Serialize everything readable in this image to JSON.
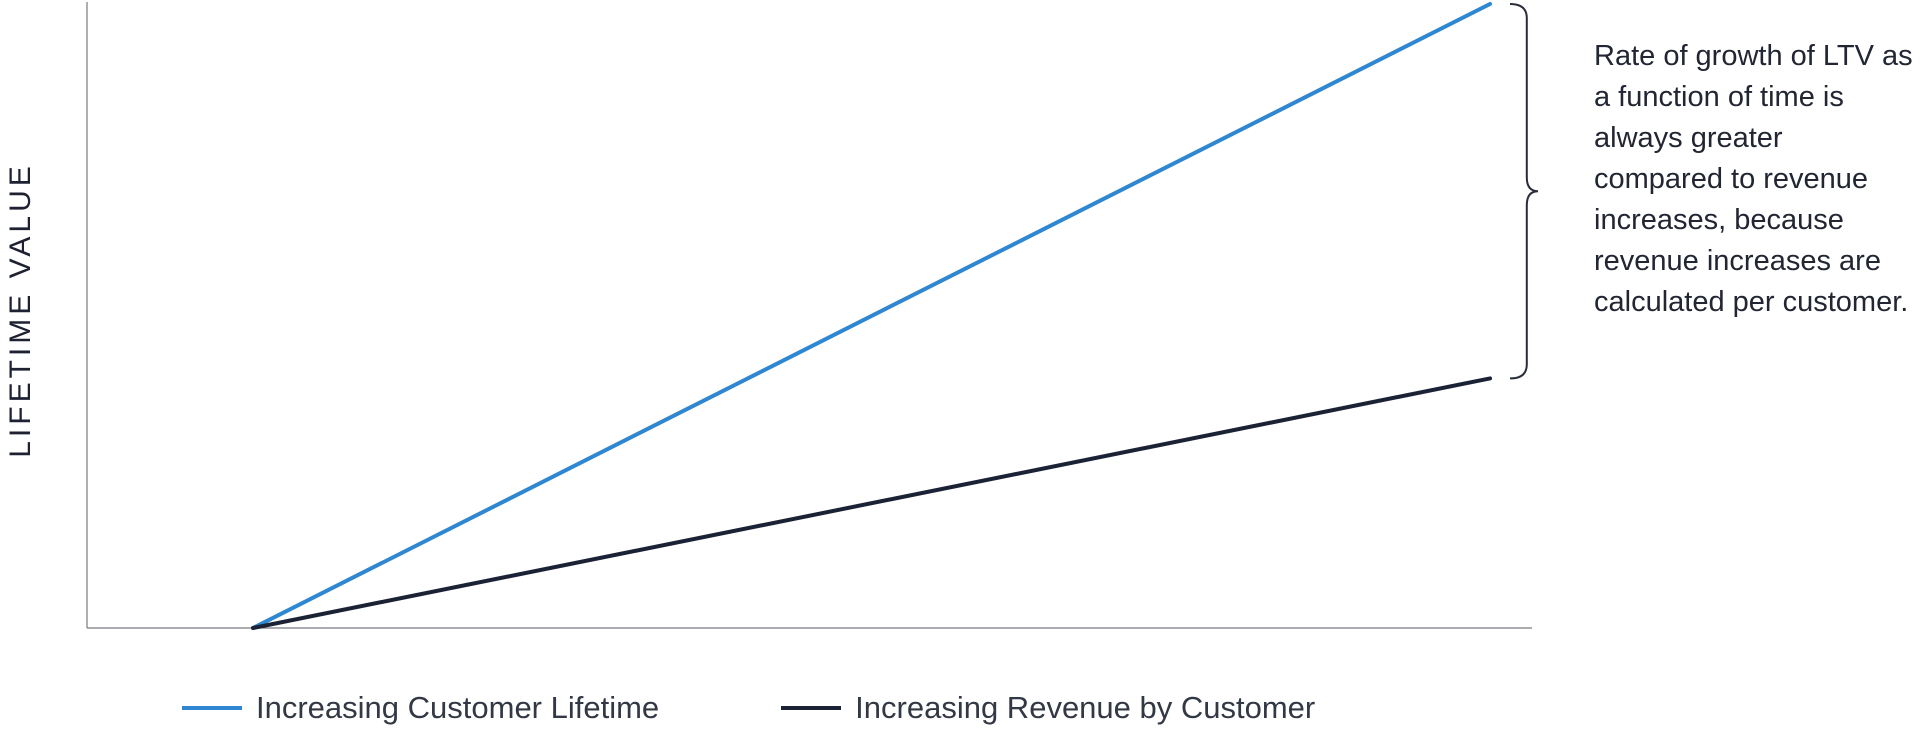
{
  "chart_data": {
    "type": "line",
    "title": "",
    "xlabel": "",
    "ylabel": "LIFETIME VALUE",
    "grid": false,
    "legend_position": "bottom",
    "x": [
      0,
      1
    ],
    "series": [
      {
        "name": "Increasing Customer Lifetime",
        "color": "#2e87d0",
        "values": [
          0,
          1
        ]
      },
      {
        "name": "Increasing Revenue by Customer",
        "color": "#1c2236",
        "values": [
          0,
          0.4
        ]
      }
    ],
    "annotation": {
      "text": "Rate of growth of LTV as a function of time is always greater compared to revenue increases, because revenue increases are calculated per customer.",
      "brace_span": [
        0.4,
        1
      ]
    }
  },
  "colors": {
    "axis": "#7a7a80",
    "brace": "#2a2e3a",
    "text": "#1d2131"
  }
}
